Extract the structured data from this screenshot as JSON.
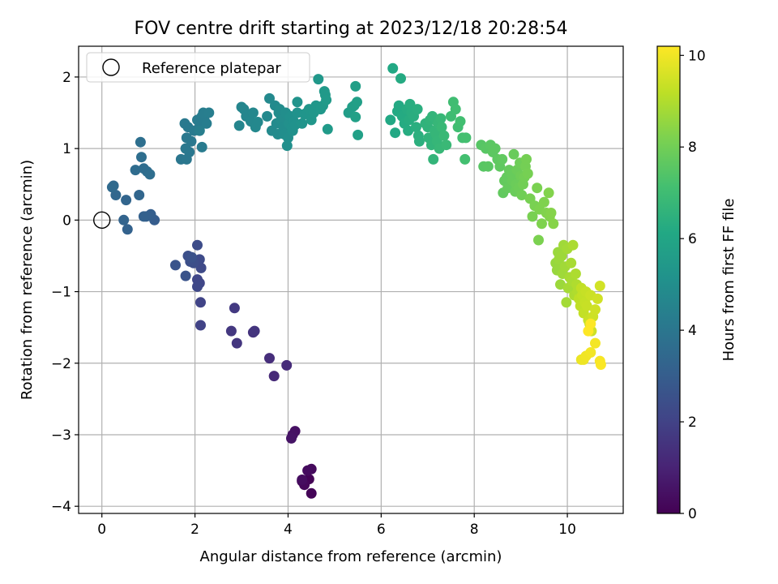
{
  "chart_data": {
    "type": "scatter",
    "title": "FOV centre drift starting at 2023/12/18 20:28:54",
    "xlabel": "Angular distance from reference (arcmin)",
    "ylabel": "Rotation from reference (arcmin)",
    "xlim": [
      -0.5,
      11.2
    ],
    "ylim": [
      -4.1,
      2.43
    ],
    "xticks": [
      0,
      2,
      4,
      6,
      8,
      10
    ],
    "yticks": [
      -4,
      -3,
      -2,
      -1,
      0,
      1,
      2
    ],
    "grid": true,
    "legend": {
      "placement": "top-left",
      "entries": [
        "Reference platepar"
      ]
    },
    "reference_point": {
      "x": 0,
      "y": 0
    },
    "colorbar": {
      "label": "Hours from first FF file",
      "range": [
        0,
        10.2
      ],
      "ticks": [
        0,
        2,
        4,
        6,
        8,
        10
      ],
      "colormap": "viridis"
    },
    "points": [
      [
        4.45,
        -3.62,
        0.05
      ],
      [
        4.5,
        -3.82,
        0.1
      ],
      [
        4.3,
        -3.65,
        0.15
      ],
      [
        4.35,
        -3.7,
        0.2
      ],
      [
        4.5,
        -3.48,
        0.25
      ],
      [
        4.42,
        -3.5,
        0.3
      ],
      [
        4.3,
        -3.63,
        0.35
      ],
      [
        4.15,
        -2.95,
        0.45
      ],
      [
        4.1,
        -3.0,
        0.5
      ],
      [
        4.07,
        -3.05,
        0.55
      ],
      [
        3.7,
        -2.18,
        1.2
      ],
      [
        3.97,
        -2.03,
        1.25
      ],
      [
        3.6,
        -1.93,
        1.35
      ],
      [
        3.25,
        -1.57,
        1.5
      ],
      [
        3.28,
        -1.55,
        1.55
      ],
      [
        2.9,
        -1.72,
        1.6
      ],
      [
        2.78,
        -1.55,
        1.65
      ],
      [
        2.85,
        -1.23,
        1.7
      ],
      [
        2.12,
        -1.47,
        2.0
      ],
      [
        2.12,
        -1.15,
        2.05
      ],
      [
        2.1,
        -0.88,
        2.1
      ],
      [
        2.05,
        -0.83,
        2.15
      ],
      [
        2.05,
        -0.93,
        2.2
      ],
      [
        2.13,
        -0.67,
        2.25
      ],
      [
        2.1,
        -0.55,
        2.3
      ],
      [
        2.05,
        -0.35,
        2.35
      ],
      [
        1.97,
        -0.6,
        2.4
      ],
      [
        1.9,
        -0.58,
        2.45
      ],
      [
        1.85,
        -0.5,
        2.5
      ],
      [
        1.93,
        -0.52,
        2.55
      ],
      [
        1.8,
        -0.78,
        2.6
      ],
      [
        1.58,
        -0.63,
        2.65
      ],
      [
        1.13,
        0.0,
        3.0
      ],
      [
        1.05,
        0.08,
        3.05
      ],
      [
        0.95,
        0.05,
        3.1
      ],
      [
        0.9,
        0.05,
        3.15
      ],
      [
        0.55,
        -0.13,
        3.2
      ],
      [
        0.47,
        0.0,
        3.25
      ],
      [
        0.52,
        0.28,
        3.3
      ],
      [
        0.8,
        0.35,
        3.35
      ],
      [
        0.3,
        0.35,
        3.4
      ],
      [
        0.25,
        0.48,
        3.45
      ],
      [
        0.22,
        0.46,
        3.5
      ],
      [
        0.72,
        0.7,
        3.6
      ],
      [
        0.9,
        0.72,
        3.62
      ],
      [
        0.97,
        0.68,
        3.64
      ],
      [
        1.03,
        0.64,
        3.66
      ],
      [
        0.85,
        0.88,
        3.68
      ],
      [
        0.83,
        1.09,
        3.7
      ],
      [
        1.7,
        0.85,
        4.0
      ],
      [
        1.82,
        0.85,
        4.02
      ],
      [
        1.88,
        0.95,
        4.04
      ],
      [
        1.8,
        1.0,
        4.06
      ],
      [
        1.92,
        1.1,
        4.08
      ],
      [
        1.82,
        1.15,
        4.1
      ],
      [
        1.78,
        1.35,
        4.12
      ],
      [
        1.85,
        1.3,
        4.14
      ],
      [
        1.98,
        1.25,
        4.16
      ],
      [
        2.1,
        1.3,
        4.18
      ],
      [
        2.15,
        1.02,
        4.2
      ],
      [
        2.05,
        1.4,
        4.22
      ],
      [
        2.15,
        1.45,
        4.24
      ],
      [
        2.2,
        1.4,
        4.26
      ],
      [
        2.25,
        1.35,
        4.28
      ],
      [
        2.18,
        1.5,
        4.3
      ],
      [
        2.3,
        1.5,
        4.32
      ],
      [
        2.1,
        1.25,
        4.34
      ],
      [
        2.95,
        1.32,
        4.6
      ],
      [
        3.0,
        1.58,
        4.62
      ],
      [
        3.05,
        1.55,
        4.64
      ],
      [
        3.1,
        1.45,
        4.66
      ],
      [
        3.2,
        1.38,
        4.68
      ],
      [
        3.25,
        1.5,
        4.7
      ],
      [
        3.3,
        1.3,
        4.72
      ],
      [
        3.35,
        1.37,
        4.74
      ],
      [
        3.55,
        1.45,
        4.76
      ],
      [
        3.6,
        1.7,
        4.78
      ],
      [
        3.65,
        1.25,
        4.8
      ],
      [
        3.72,
        1.6,
        4.82
      ],
      [
        3.75,
        1.35,
        4.84
      ],
      [
        3.78,
        1.2,
        4.86
      ],
      [
        3.8,
        1.5,
        4.88
      ],
      [
        3.82,
        1.55,
        4.9
      ],
      [
        3.85,
        1.4,
        4.92
      ],
      [
        3.9,
        1.3,
        4.94
      ],
      [
        3.92,
        1.2,
        4.96
      ],
      [
        3.95,
        1.5,
        4.98
      ],
      [
        3.98,
        1.04,
        5.0
      ],
      [
        4.0,
        1.15,
        5.02
      ],
      [
        4.02,
        1.35,
        5.04
      ],
      [
        4.05,
        1.45,
        5.06
      ],
      [
        4.08,
        1.3,
        5.08
      ],
      [
        4.1,
        1.25,
        5.1
      ],
      [
        4.12,
        1.38,
        5.12
      ],
      [
        4.15,
        1.33,
        5.14
      ],
      [
        4.2,
        1.5,
        5.16
      ],
      [
        4.2,
        1.65,
        5.18
      ],
      [
        4.3,
        1.35,
        5.25
      ],
      [
        4.35,
        1.48,
        5.27
      ],
      [
        4.4,
        1.5,
        5.29
      ],
      [
        4.45,
        1.55,
        5.31
      ],
      [
        4.5,
        1.4,
        5.33
      ],
      [
        4.55,
        1.5,
        5.35
      ],
      [
        4.6,
        1.6,
        5.37
      ],
      [
        4.65,
        1.97,
        5.39
      ],
      [
        4.7,
        1.55,
        5.41
      ],
      [
        4.75,
        1.6,
        5.43
      ],
      [
        4.78,
        1.8,
        5.45
      ],
      [
        4.8,
        1.75,
        5.47
      ],
      [
        4.82,
        1.68,
        5.49
      ],
      [
        4.85,
        1.27,
        5.51
      ],
      [
        5.3,
        1.5,
        5.65
      ],
      [
        5.38,
        1.58,
        5.67
      ],
      [
        5.42,
        1.6,
        5.69
      ],
      [
        5.45,
        1.87,
        5.71
      ],
      [
        5.48,
        1.65,
        5.73
      ],
      [
        5.5,
        1.19,
        5.75
      ],
      [
        5.45,
        1.44,
        5.77
      ],
      [
        6.2,
        1.4,
        6.1
      ],
      [
        6.25,
        2.12,
        6.12
      ],
      [
        6.3,
        1.22,
        6.14
      ],
      [
        6.35,
        1.52,
        6.16
      ],
      [
        6.38,
        1.6,
        6.18
      ],
      [
        6.42,
        1.98,
        6.2
      ],
      [
        6.45,
        1.45,
        6.22
      ],
      [
        6.5,
        1.35,
        6.24
      ],
      [
        6.55,
        1.55,
        6.26
      ],
      [
        6.58,
        1.25,
        6.28
      ],
      [
        6.6,
        1.4,
        6.3
      ],
      [
        6.62,
        1.62,
        6.32
      ],
      [
        6.65,
        1.5,
        6.34
      ],
      [
        6.7,
        1.45,
        6.36
      ],
      [
        6.75,
        1.3,
        6.38
      ],
      [
        6.78,
        1.55,
        6.4
      ],
      [
        6.8,
        1.18,
        6.42
      ],
      [
        6.82,
        1.1,
        6.44
      ],
      [
        6.95,
        1.35,
        6.55
      ],
      [
        7.0,
        1.3,
        6.57
      ],
      [
        7.02,
        1.15,
        6.59
      ],
      [
        7.05,
        1.4,
        6.61
      ],
      [
        7.08,
        1.05,
        6.63
      ],
      [
        7.1,
        1.45,
        6.65
      ],
      [
        7.12,
        0.85,
        6.67
      ],
      [
        7.15,
        1.25,
        6.69
      ],
      [
        7.18,
        1.2,
        6.71
      ],
      [
        7.2,
        1.1,
        6.73
      ],
      [
        7.22,
        1.35,
        6.75
      ],
      [
        7.25,
        1.0,
        6.77
      ],
      [
        7.28,
        1.42,
        6.79
      ],
      [
        7.3,
        1.3,
        6.81
      ],
      [
        7.35,
        1.18,
        6.83
      ],
      [
        7.4,
        1.05,
        6.85
      ],
      [
        7.5,
        1.45,
        7.0
      ],
      [
        7.55,
        1.65,
        7.02
      ],
      [
        7.6,
        1.55,
        7.04
      ],
      [
        7.65,
        1.3,
        7.06
      ],
      [
        7.7,
        1.38,
        7.08
      ],
      [
        7.75,
        1.15,
        7.1
      ],
      [
        7.8,
        0.85,
        7.12
      ],
      [
        7.82,
        1.15,
        7.14
      ],
      [
        8.15,
        1.05,
        7.5
      ],
      [
        8.2,
        0.75,
        7.52
      ],
      [
        8.25,
        1.0,
        7.54
      ],
      [
        8.3,
        0.75,
        7.56
      ],
      [
        8.35,
        1.05,
        7.58
      ],
      [
        8.4,
        0.95,
        7.6
      ],
      [
        8.45,
        1.0,
        7.62
      ],
      [
        8.5,
        0.85,
        7.64
      ],
      [
        8.55,
        0.75,
        7.66
      ],
      [
        8.6,
        0.85,
        7.68
      ],
      [
        8.62,
        0.38,
        7.7
      ],
      [
        8.65,
        0.55,
        7.72
      ],
      [
        8.7,
        0.6,
        7.74
      ],
      [
        8.72,
        0.45,
        7.76
      ],
      [
        8.75,
        0.7,
        7.78
      ],
      [
        8.8,
        0.65,
        7.8
      ],
      [
        8.82,
        0.55,
        7.82
      ],
      [
        8.85,
        0.92,
        7.84
      ],
      [
        8.88,
        0.4,
        7.86
      ],
      [
        8.9,
        0.5,
        7.88
      ],
      [
        8.92,
        0.7,
        7.9
      ],
      [
        8.95,
        0.45,
        7.92
      ],
      [
        8.98,
        0.8,
        7.94
      ],
      [
        9.0,
        0.62,
        7.96
      ],
      [
        9.02,
        0.35,
        7.98
      ],
      [
        9.05,
        0.5,
        8.0
      ],
      [
        9.08,
        0.6,
        8.02
      ],
      [
        9.1,
        0.75,
        8.04
      ],
      [
        9.12,
        0.85,
        8.06
      ],
      [
        9.15,
        0.65,
        8.08
      ],
      [
        9.2,
        0.3,
        8.1
      ],
      [
        9.25,
        0.05,
        8.12
      ],
      [
        9.3,
        0.2,
        8.14
      ],
      [
        9.35,
        0.45,
        8.16
      ],
      [
        9.38,
        -0.28,
        8.18
      ],
      [
        9.4,
        0.15,
        8.2
      ],
      [
        9.45,
        -0.05,
        8.22
      ],
      [
        9.5,
        0.25,
        8.24
      ],
      [
        9.55,
        0.1,
        8.26
      ],
      [
        9.6,
        0.38,
        8.28
      ],
      [
        9.62,
        0.05,
        8.3
      ],
      [
        9.65,
        0.1,
        8.32
      ],
      [
        9.7,
        -0.05,
        8.34
      ],
      [
        9.75,
        -0.6,
        8.6
      ],
      [
        9.78,
        -0.7,
        8.62
      ],
      [
        9.8,
        -0.45,
        8.64
      ],
      [
        9.82,
        -0.55,
        8.66
      ],
      [
        9.85,
        -0.9,
        8.68
      ],
      [
        9.88,
        -0.5,
        8.7
      ],
      [
        9.9,
        -0.75,
        8.72
      ],
      [
        9.92,
        -0.35,
        8.74
      ],
      [
        9.95,
        -0.65,
        8.76
      ],
      [
        9.98,
        -1.15,
        8.78
      ],
      [
        10.0,
        -0.4,
        8.8
      ],
      [
        10.02,
        -0.95,
        8.82
      ],
      [
        10.05,
        -0.8,
        8.84
      ],
      [
        10.08,
        -0.6,
        8.86
      ],
      [
        10.1,
        -0.85,
        8.88
      ],
      [
        10.12,
        -0.35,
        8.9
      ],
      [
        10.15,
        -1.05,
        8.92
      ],
      [
        10.18,
        -0.75,
        8.94
      ],
      [
        10.2,
        -0.9,
        8.96
      ],
      [
        10.22,
        -1.0,
        8.98
      ],
      [
        10.25,
        -1.1,
        9.2
      ],
      [
        10.28,
        -1.2,
        9.22
      ],
      [
        10.3,
        -0.95,
        9.24
      ],
      [
        10.32,
        -1.05,
        9.26
      ],
      [
        10.35,
        -1.3,
        9.28
      ],
      [
        10.38,
        -1.15,
        9.3
      ],
      [
        10.4,
        -1.0,
        9.32
      ],
      [
        10.42,
        -1.2,
        9.34
      ],
      [
        10.45,
        -1.4,
        9.36
      ],
      [
        10.48,
        -1.45,
        9.38
      ],
      [
        10.5,
        -1.05,
        9.4
      ],
      [
        10.52,
        -1.55,
        9.42
      ],
      [
        10.55,
        -1.35,
        9.44
      ],
      [
        10.6,
        -1.25,
        9.46
      ],
      [
        10.65,
        -1.1,
        9.48
      ],
      [
        10.7,
        -0.92,
        9.5
      ],
      [
        10.3,
        -1.95,
        9.9
      ],
      [
        10.35,
        -1.95,
        9.95
      ],
      [
        10.4,
        -1.9,
        10.0
      ],
      [
        10.5,
        -1.85,
        10.02
      ],
      [
        10.6,
        -1.72,
        10.05
      ],
      [
        10.7,
        -1.97,
        10.1
      ],
      [
        10.72,
        -2.02,
        10.15
      ],
      [
        10.5,
        -1.45,
        10.18
      ],
      [
        10.45,
        -1.55,
        10.2
      ]
    ]
  }
}
